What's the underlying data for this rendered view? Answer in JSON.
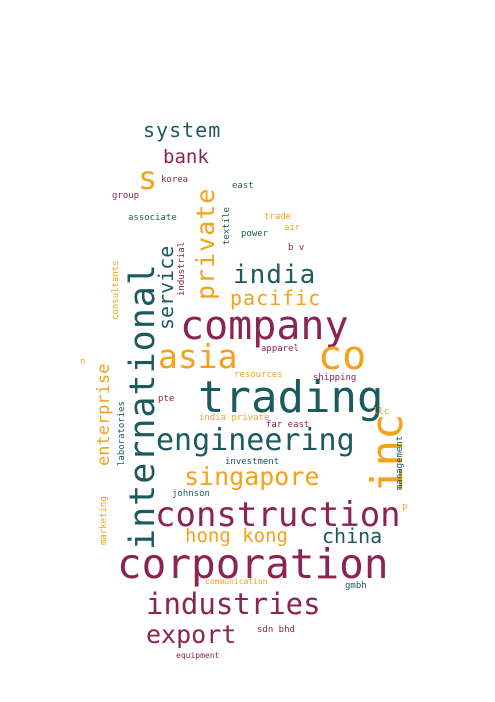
{
  "colors": {
    "maroon": "#8b2452",
    "teal": "#1b5a5e",
    "orange": "#f5a11c",
    "background": "#ffffff"
  },
  "words": {
    "system": "system",
    "bank": "bank",
    "s": "s",
    "korea": "korea",
    "east": "east",
    "group": "group",
    "associate": "associate",
    "trade": "trade",
    "air": "air",
    "power": "power",
    "textile": "textile",
    "industrial": "industrial",
    "b_v": "b v",
    "private": "private",
    "international": "international",
    "india": "india",
    "pacific": "pacific",
    "service": "service",
    "company": "company",
    "consultants": "consultants",
    "n": "n",
    "asia": "asia",
    "co": "co",
    "apparel": "apparel",
    "resources": "resources",
    "shipping": "shipping",
    "trading": "trading",
    "pte": "pte",
    "llc": "llc",
    "india_private": "india private",
    "far_east": "far east",
    "laboratories": "laboratories",
    "enterprise": "enterprise",
    "engineering": "engineering",
    "inc": "inc",
    "investment": "investment",
    "management": "management",
    "singapore": "singapore",
    "johnson": "johnson",
    "marketing": "marketing",
    "p": "p",
    "construction": "construction",
    "hong_kong": "hong kong",
    "china": "china",
    "corporation": "corporation",
    "communication": "communication",
    "gmbh": "gmbh",
    "industries": "industries",
    "export": "export",
    "sdn_bhd": "sdn bhd",
    "equipment": "equipment"
  }
}
